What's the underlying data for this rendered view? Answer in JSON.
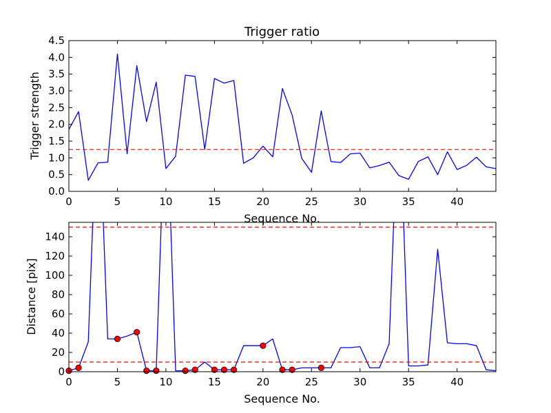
{
  "colors": {
    "line": "#0000ff",
    "threshold": "#ff0000",
    "marker_fill": "#ff0000",
    "marker_edge": "#000000",
    "axes": "#000000",
    "background": "#ffffff"
  },
  "chart_data": [
    {
      "type": "line",
      "title": "Trigger ratio",
      "xlabel": "Sequence No.",
      "ylabel": "Trigger strength",
      "xlim": [
        0,
        44
      ],
      "ylim": [
        0,
        4.5
      ],
      "grid": false,
      "x_ticks": [
        0,
        5,
        10,
        15,
        20,
        25,
        30,
        35,
        40
      ],
      "y_ticks": [
        0,
        0.5,
        1.0,
        1.5,
        2.0,
        2.5,
        3.0,
        3.5,
        4.0,
        4.5
      ],
      "x_tick_labels": [
        "0",
        "5",
        "10",
        "15",
        "20",
        "25",
        "30",
        "35",
        "40"
      ],
      "y_tick_labels": [
        "0.0",
        "0.5",
        "1.0",
        "1.5",
        "2.0",
        "2.5",
        "3.0",
        "3.5",
        "4.0",
        "4.5"
      ],
      "series": [
        {
          "x": [
            0,
            1,
            2,
            3,
            4,
            5,
            6,
            7,
            8,
            9,
            10,
            11,
            12,
            13,
            14,
            15,
            16,
            17,
            18,
            19,
            20,
            21,
            22,
            23,
            24,
            25,
            26,
            27,
            28,
            29,
            30,
            31,
            32,
            33,
            34,
            35,
            36,
            37,
            38,
            39,
            40,
            41,
            42,
            43,
            44
          ],
          "values": [
            1.85,
            2.38,
            0.33,
            0.85,
            0.87,
            4.1,
            1.12,
            3.75,
            2.08,
            3.26,
            0.68,
            1.05,
            3.47,
            3.43,
            1.25,
            3.37,
            3.23,
            3.31,
            0.84,
            1.0,
            1.35,
            1.03,
            3.07,
            2.28,
            0.98,
            0.57,
            2.4,
            0.89,
            0.86,
            1.12,
            1.14,
            0.7,
            0.77,
            0.87,
            0.47,
            0.36,
            0.89,
            1.03,
            0.5,
            1.18,
            0.65,
            0.78,
            1.02,
            0.73,
            0.68
          ]
        }
      ],
      "hlines": [
        1.25
      ]
    },
    {
      "type": "line",
      "title": "",
      "xlabel": "Sequence No.",
      "ylabel": "Distance [pix]",
      "xlim": [
        0,
        44
      ],
      "ylim": [
        0,
        155
      ],
      "grid": false,
      "x_ticks": [
        0,
        5,
        10,
        15,
        20,
        25,
        30,
        35,
        40
      ],
      "y_ticks": [
        0,
        20,
        40,
        60,
        80,
        100,
        120,
        140
      ],
      "x_tick_labels": [
        "0",
        "5",
        "10",
        "15",
        "20",
        "25",
        "30",
        "35",
        "40"
      ],
      "y_tick_labels": [
        "0",
        "20",
        "40",
        "60",
        "80",
        "100",
        "120",
        "140"
      ],
      "series": [
        {
          "x": [
            0,
            1,
            2,
            3,
            4,
            5,
            6,
            7,
            8,
            9,
            10,
            11,
            12,
            13,
            14,
            15,
            16,
            17,
            18,
            19,
            20,
            21,
            22,
            23,
            24,
            25,
            26,
            27,
            28,
            29,
            30,
            31,
            32,
            33,
            34,
            35,
            36,
            37,
            38,
            39,
            40,
            41,
            42,
            43,
            44
          ],
          "values": [
            1,
            4,
            31,
            300,
            34,
            34,
            37,
            41,
            1,
            1,
            300,
            1,
            1,
            2,
            10,
            2,
            2,
            2,
            27,
            27,
            27,
            34,
            2,
            2,
            4,
            4,
            4,
            4,
            25,
            25,
            26,
            4,
            4,
            29,
            300,
            6,
            6,
            7,
            127,
            30,
            29,
            29,
            27,
            2,
            1
          ]
        }
      ],
      "markers": {
        "x": [
          0,
          1,
          5,
          7,
          8,
          9,
          12,
          13,
          15,
          16,
          17,
          20,
          22,
          23,
          26
        ],
        "values": [
          1,
          4,
          34,
          41,
          1,
          1,
          1,
          2,
          2,
          2,
          2,
          27,
          2,
          2,
          4
        ]
      },
      "hlines": [
        150,
        10
      ]
    }
  ]
}
